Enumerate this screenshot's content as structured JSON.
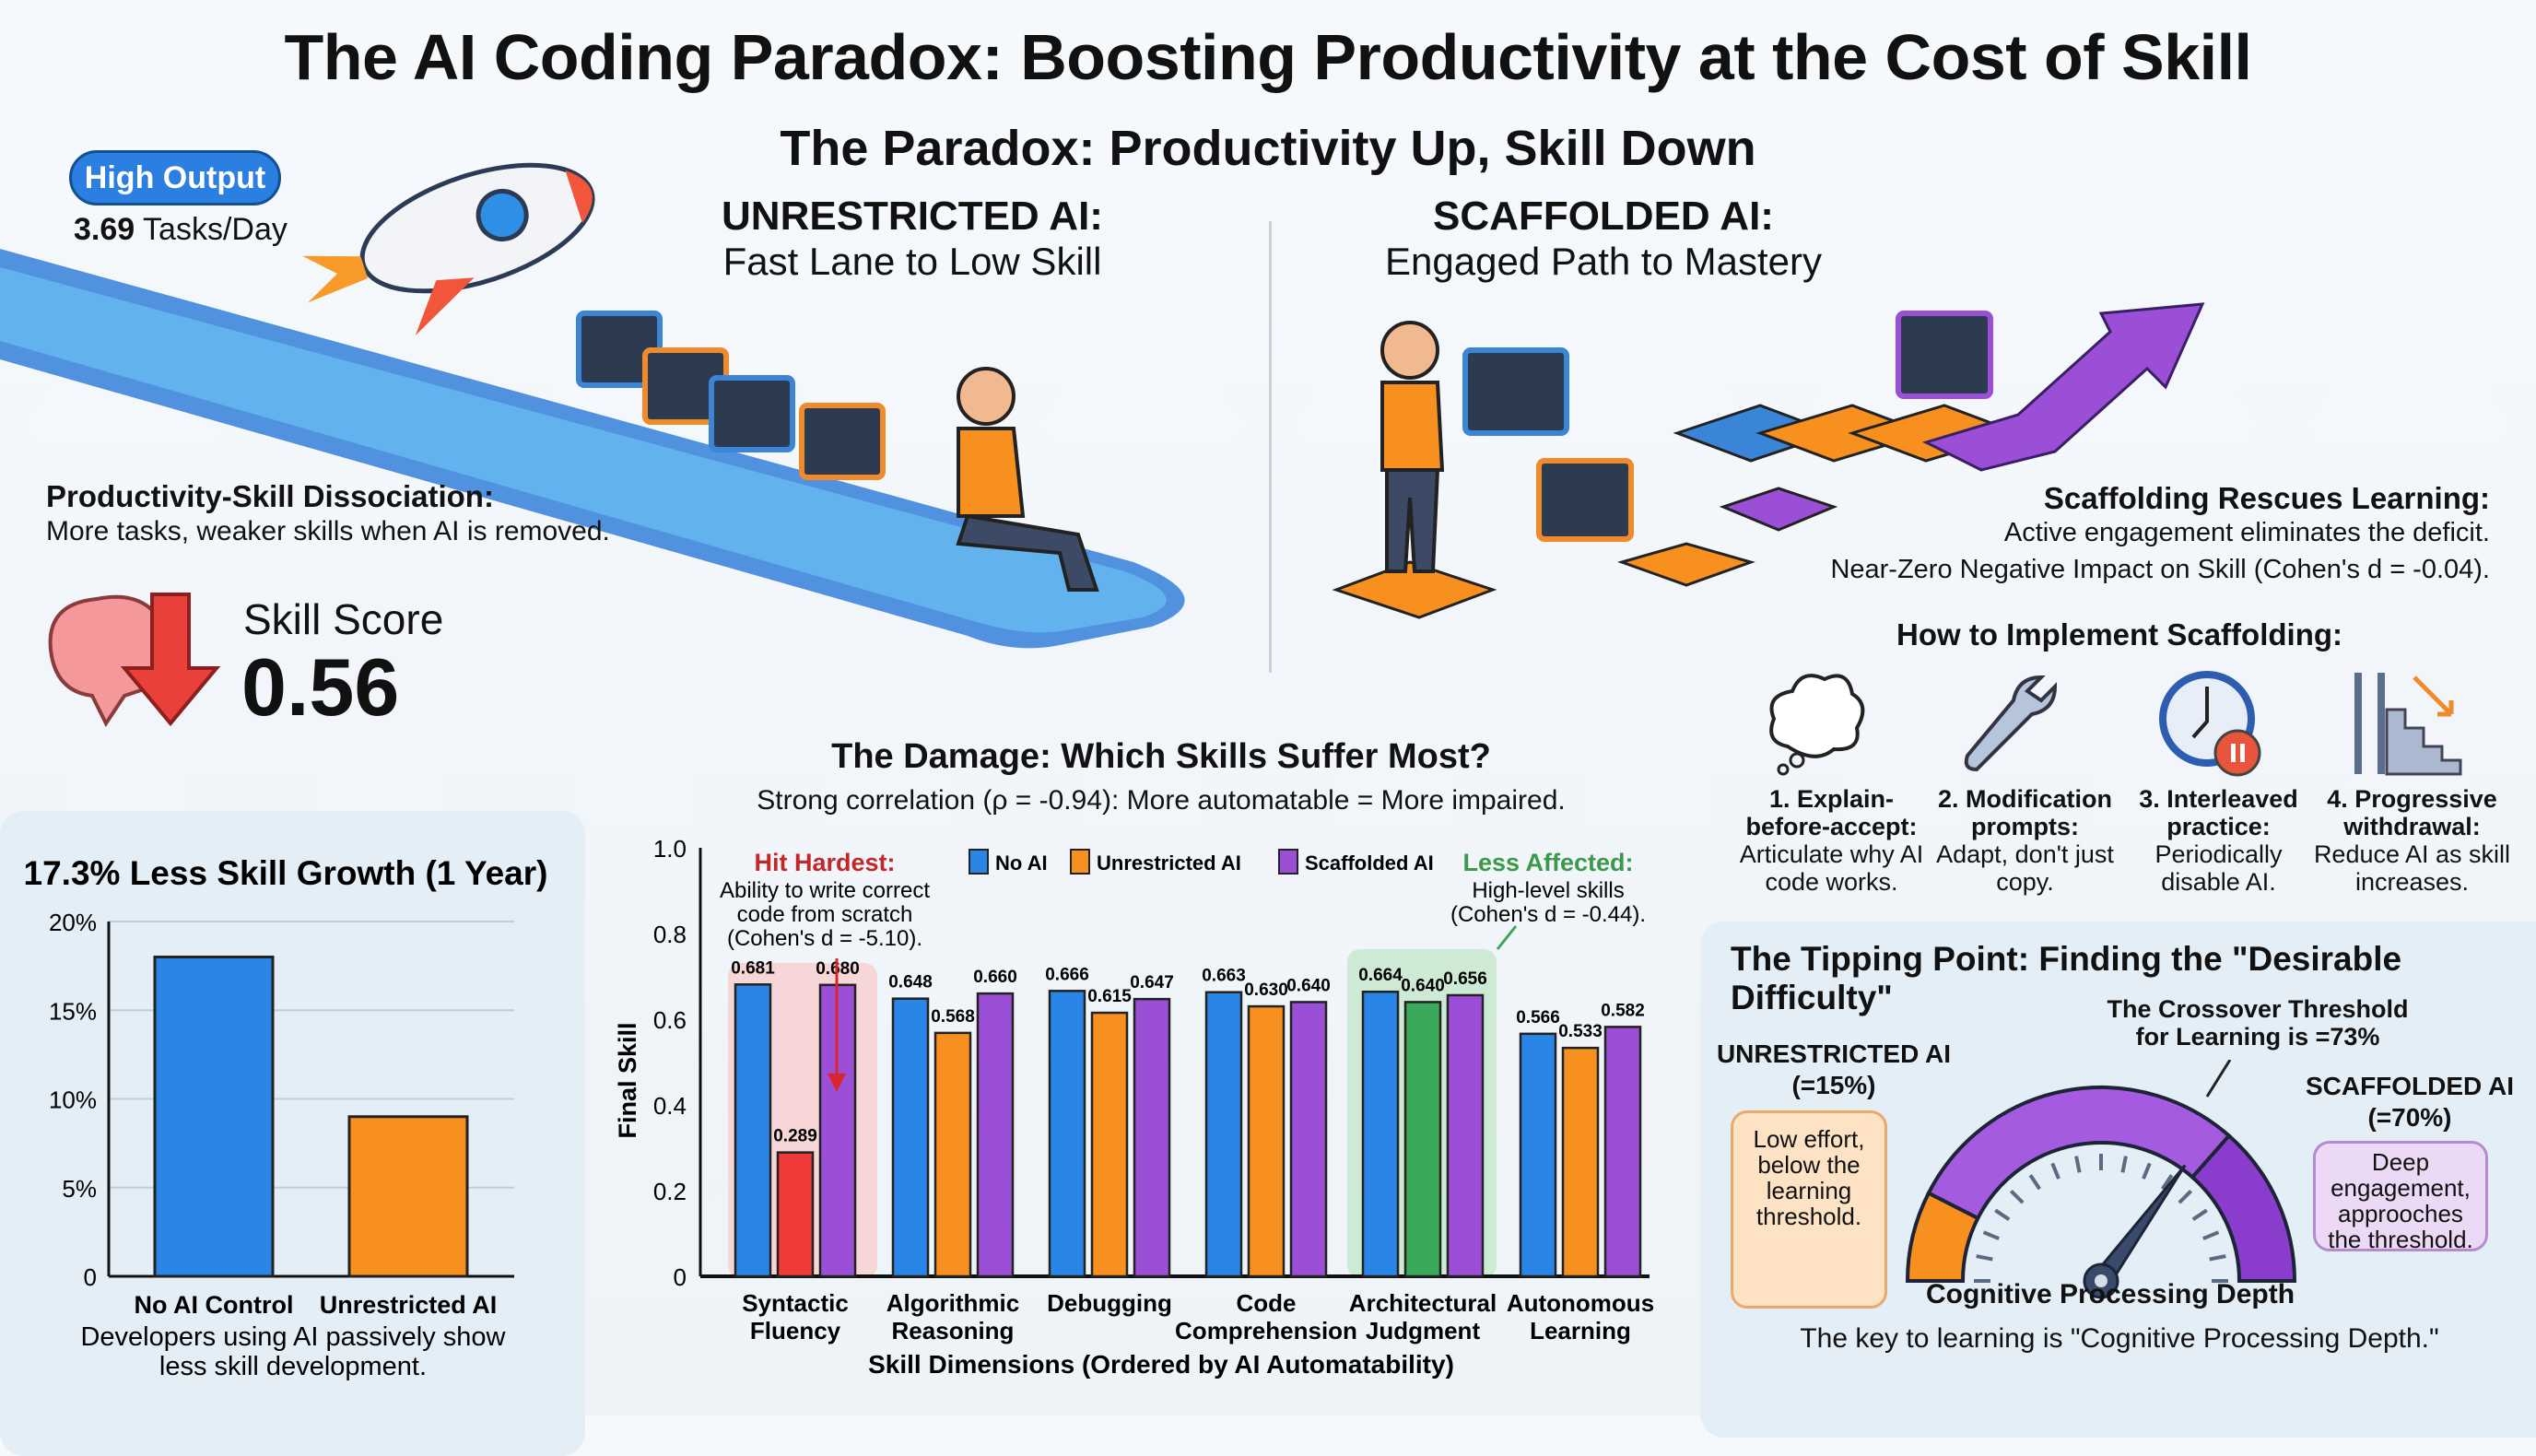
{
  "title": "The AI Coding Paradox: Boosting Productivity at the Cost of Skill",
  "subtitle": "The Paradox: Productivity Up, Skill Down",
  "unrestricted": {
    "heading": "UNRESTRICTED AI:",
    "sub": "Fast Lane to Low Skill",
    "badge": "High Output",
    "tasks_value": "3.69",
    "tasks_unit": "Tasks/Day",
    "dissociation_title": "Productivity-Skill Dissociation:",
    "dissociation_text": "More tasks, weaker skills when AI is removed.",
    "skill_label": "Skill Score",
    "skill_value": "0.56"
  },
  "scaffolded": {
    "heading": "SCAFFOLDED AI:",
    "sub": "Engaged Path to Mastery",
    "rescue_title": "Scaffolding Rescues Learning:",
    "rescue_text1": "Active engagement eliminates the deficit.",
    "rescue_text2": "Near-Zero Negative Impact on Skill (Cohen's d = -0.04).",
    "howto_title": "How to Implement Scaffolding:",
    "steps": [
      {
        "icon": "thought-cloud-icon",
        "title": "1. Explain-before-accept:",
        "text": "Articulate why AI code works."
      },
      {
        "icon": "wrench-icon",
        "title": "2. Modification prompts:",
        "text": "Adapt, don't just copy."
      },
      {
        "icon": "clock-pause-icon",
        "title": "3. Interleaved practice:",
        "text": "Periodically disable AI."
      },
      {
        "icon": "ladder-stairs-icon",
        "title": "4. Progressive withdrawal:",
        "text": "Reduce AI as skill increases."
      }
    ]
  },
  "colors": {
    "no_ai": "#2a86e6",
    "unrestricted": "#f7901e",
    "scaffolded": "#9b4fd6",
    "hit": "#f03a3a",
    "less": "#3aa95a"
  },
  "chart_data": [
    {
      "type": "bar",
      "title": "17.3% Less Skill Growth (1 Year)",
      "categories": [
        "No AI Control",
        "Unrestricted AI"
      ],
      "values": [
        18,
        9
      ],
      "ylim": [
        0,
        20
      ],
      "yticks": [
        "0",
        "5%",
        "10%",
        "15%",
        "20%"
      ],
      "grid": true,
      "caption": "Developers using AI passively show less skill development."
    },
    {
      "type": "bar",
      "title": "The Damage: Which Skills Suffer Most?",
      "subtitle": "Strong correlation (ρ = -0.94): More automatable = More impaired.",
      "xlabel": "Skill Dimensions (Ordered by AI Automatability)",
      "ylabel": "Final Skill",
      "ylim": [
        0,
        1.0
      ],
      "yticks": [
        "0",
        "0.2",
        "0.4",
        "0.6",
        "0.8",
        "1.0"
      ],
      "legend_position": "top",
      "categories": [
        "Syntactic Fluency",
        "Algorithmic Reasoning",
        "Debugging",
        "Code Comprehension",
        "Architectural Judgment",
        "Autonomous Learning"
      ],
      "series": [
        {
          "name": "No AI",
          "values": [
            0.681,
            0.648,
            0.666,
            0.663,
            0.664,
            0.566
          ]
        },
        {
          "name": "Unrestricted AI",
          "values": [
            0.289,
            0.568,
            0.615,
            0.63,
            0.64,
            0.533
          ]
        },
        {
          "name": "Scaffolded AI",
          "values": [
            0.68,
            0.66,
            0.647,
            0.64,
            0.656,
            0.582
          ]
        }
      ],
      "annotations": [
        {
          "title": "Hit Hardest:",
          "text": "Ability to write correct code from scratch (Cohen's d = -5.10).",
          "category": "Syntactic Fluency"
        },
        {
          "title": "Less Affected:",
          "text": "High-level skills (Cohen's d = -0.44).",
          "category": "Architectural Judgment"
        }
      ]
    }
  ],
  "tipping": {
    "title": "The Tipping Point: Finding the \"Desirable Difficulty\"",
    "threshold_text": "The Crossover Threshold for Learning is =73%",
    "unrestricted_label": "UNRESTRICTED AI",
    "unrestricted_value": "(=15%)",
    "unrestricted_note": "Low effort, below the learning threshold.",
    "scaffolded_label": "SCAFFOLDED AI",
    "scaffolded_value": "(=70%)",
    "scaffolded_note": "Deep engagement, approoches the threshold.",
    "gauge_label": "Cognitive Processing Depth",
    "footer": "The key to learning is \"Cognitive Processing Depth.\"",
    "unrestricted_pct": 15,
    "threshold_pct": 73,
    "needle_pct": 70
  }
}
